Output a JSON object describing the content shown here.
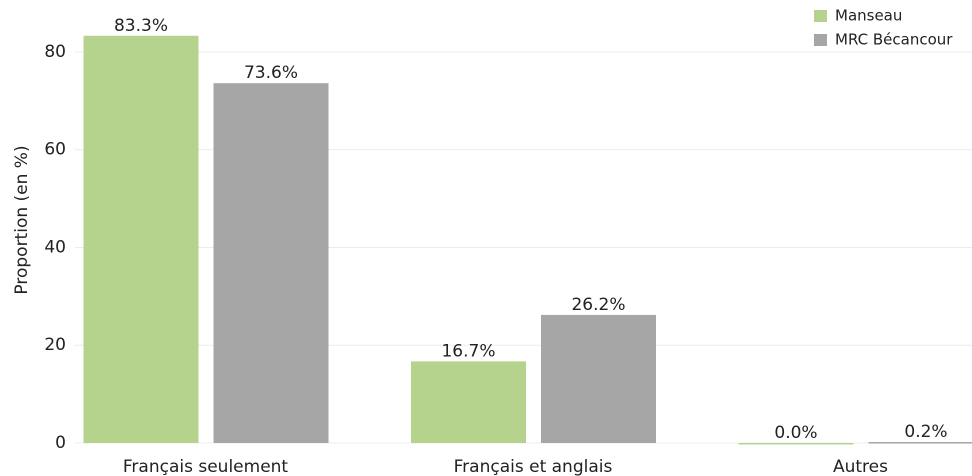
{
  "chart_data": {
    "type": "bar",
    "categories": [
      "Français seulement",
      "Français et anglais",
      "Autres"
    ],
    "series": [
      {
        "name": "Manseau",
        "color": "#b5d38d",
        "values": [
          83.3,
          16.7,
          0.0
        ],
        "value_labels": [
          "83.3%",
          "16.7%",
          "0.0%"
        ]
      },
      {
        "name": "MRC Bécancour",
        "color": "#a6a6a6",
        "values": [
          73.6,
          26.2,
          0.2
        ],
        "value_labels": [
          "73.6%",
          "26.2%",
          "0.2%"
        ]
      }
    ],
    "ylabel": "Proportion (en %)",
    "ylim": [
      0,
      90
    ],
    "yticks": [
      0,
      20,
      40,
      60,
      80
    ],
    "grid": true,
    "legend": "upper right"
  }
}
